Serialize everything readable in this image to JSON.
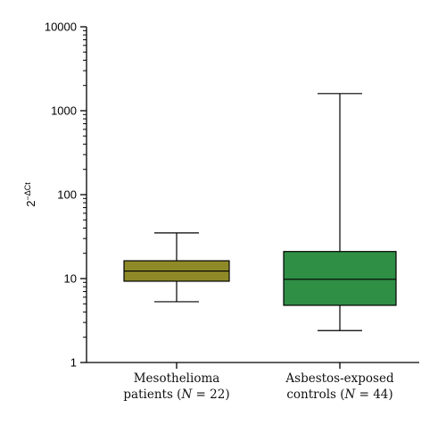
{
  "chart_data": {
    "type": "boxplot",
    "ylabel_base": "2",
    "ylabel_exponent": "−ΔCt",
    "y_scale": "log",
    "ylim": [
      1,
      10000
    ],
    "y_ticks": [
      {
        "value": 1,
        "label": "1"
      },
      {
        "value": 10,
        "label": "10"
      },
      {
        "value": 100,
        "label": "100"
      },
      {
        "value": 1000,
        "label": "1000"
      },
      {
        "value": 10000,
        "label": "10000"
      }
    ],
    "grid": false,
    "legend": "none",
    "series": [
      {
        "category_line1": "Mesothelioma",
        "category_line2_prefix": "patients (",
        "category_line2_var": "N",
        "category_line2_suffix": " = 22)",
        "color": "#8f8a28",
        "min": 5.3,
        "q1": 9.3,
        "median": 12.3,
        "q3": 16.3,
        "max": 35
      },
      {
        "category_line1": "Asbestos-exposed",
        "category_line2_prefix": "controls (",
        "category_line2_var": "N",
        "category_line2_suffix": " = 44)",
        "color": "#2f8f45",
        "min": 2.4,
        "q1": 4.8,
        "median": 9.8,
        "q3": 21,
        "max": 1600
      }
    ]
  }
}
